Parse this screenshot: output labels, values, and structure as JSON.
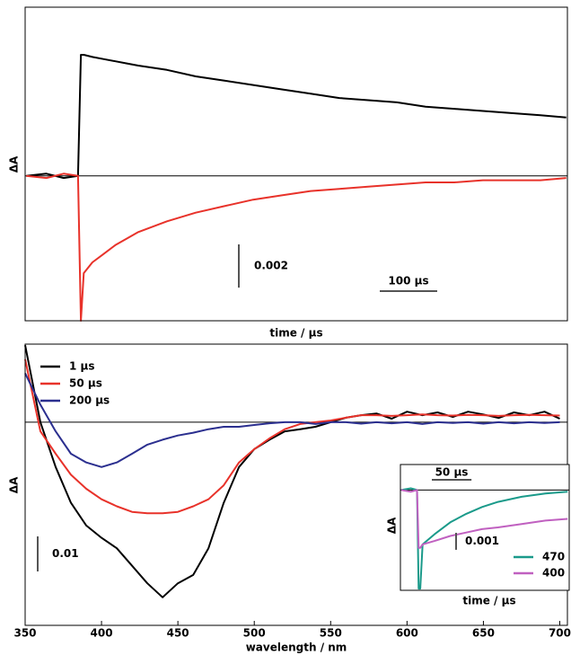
{
  "chart_data": [
    {
      "type": "line",
      "xlabel": "time / μs",
      "ylabel": "ΔA",
      "reference_line": 0,
      "xlim": [
        -97,
        847
      ],
      "ylim": [
        -0.0067,
        0.0078
      ],
      "x": [
        -95,
        -60,
        -30,
        -5,
        0,
        5,
        20,
        40,
        60,
        80,
        100,
        150,
        200,
        250,
        300,
        350,
        400,
        450,
        500,
        550,
        600,
        650,
        700,
        750,
        800,
        845
      ],
      "series": [
        {
          "color": "#000000",
          "values": [
            0,
            0.0001,
            -0.0001,
            0,
            0.0056,
            0.0056,
            0.0055,
            0.0054,
            0.0053,
            0.0052,
            0.0051,
            0.0049,
            0.0046,
            0.0044,
            0.0042,
            0.004,
            0.0038,
            0.0036,
            0.0035,
            0.0034,
            0.0032,
            0.0031,
            0.003,
            0.0029,
            0.0028,
            0.0027
          ]
        },
        {
          "color": "#e8322a",
          "values": [
            0,
            -0.0001,
            0.0001,
            0,
            -0.0067,
            -0.0045,
            -0.004,
            -0.0036,
            -0.0032,
            -0.0029,
            -0.0026,
            -0.0021,
            -0.0017,
            -0.0014,
            -0.0011,
            -0.0009,
            -0.0007,
            -0.0006,
            -0.0005,
            -0.0004,
            -0.0003,
            -0.0003,
            -0.0002,
            -0.0002,
            -0.0002,
            -0.0001
          ]
        }
      ],
      "scale_bars": [
        {
          "axis": "y",
          "value": 0.002
        },
        {
          "axis": "x",
          "value": 100,
          "label": "100 μs"
        }
      ]
    },
    {
      "type": "line",
      "xlabel": "wavelength / nm",
      "ylabel": "ΔA",
      "reference_line": 0,
      "legend": "upper left",
      "xlim": [
        350,
        705
      ],
      "ylim": [
        -0.058,
        0.0223
      ],
      "xticks": [
        350,
        400,
        450,
        500,
        550,
        600,
        650,
        700
      ],
      "x": [
        350,
        360,
        370,
        380,
        390,
        400,
        410,
        420,
        430,
        440,
        450,
        460,
        470,
        480,
        490,
        500,
        510,
        520,
        530,
        540,
        550,
        560,
        570,
        580,
        590,
        600,
        610,
        620,
        630,
        640,
        650,
        660,
        670,
        680,
        690,
        700
      ],
      "series": [
        {
          "name": "1 μs",
          "color": "#000000",
          "values": [
            0.022,
            0,
            -0.0128,
            -0.023,
            -0.0295,
            -0.033,
            -0.036,
            -0.041,
            -0.046,
            -0.05,
            -0.046,
            -0.0436,
            -0.036,
            -0.023,
            -0.0128,
            -0.0077,
            -0.005,
            -0.0026,
            -0.002,
            -0.0013,
            0,
            0.0013,
            0.002,
            0.0025,
            0.001,
            0.003,
            0.002,
            0.0028,
            0.0015,
            0.003,
            0.0022,
            0.0012,
            0.0028,
            0.002,
            0.003,
            0.001
          ]
        },
        {
          "name": "50 μs",
          "color": "#e8322a",
          "values": [
            0.018,
            -0.0026,
            -0.009,
            -0.015,
            -0.019,
            -0.022,
            -0.024,
            -0.0256,
            -0.026,
            -0.026,
            -0.0256,
            -0.024,
            -0.022,
            -0.018,
            -0.0115,
            -0.0077,
            -0.0046,
            -0.002,
            -0.0005,
            0,
            0.0005,
            0.0013,
            0.002,
            0.002,
            0.0018,
            0.002,
            0.0022,
            0.002,
            0.0019,
            0.0021,
            0.002,
            0.0018,
            0.002,
            0.0021,
            0.002,
            0.0019
          ]
        },
        {
          "name": "200 μs",
          "color": "#2b2f8f",
          "values": [
            0.014,
            0.005,
            -0.0026,
            -0.009,
            -0.0115,
            -0.0128,
            -0.0115,
            -0.009,
            -0.0064,
            -0.005,
            -0.0038,
            -0.003,
            -0.002,
            -0.0013,
            -0.0013,
            -0.0008,
            -0.0003,
            0,
            0,
            -0.0005,
            0,
            0,
            -0.0004,
            0,
            -0.0003,
            0,
            -0.0005,
            0,
            -0.0002,
            0,
            -0.0004,
            0,
            -0.0003,
            0,
            -0.0002,
            0
          ]
        }
      ],
      "scale_bars": [
        {
          "axis": "y",
          "value": 0.01
        }
      ]
    },
    {
      "type": "line",
      "xlabel": "time / μs",
      "ylabel": "ΔA",
      "reference_line": 0,
      "legend": "lower right",
      "xlim": [
        -23,
        190
      ],
      "ylim": [
        -0.0059,
        0.0015
      ],
      "x": [
        -22,
        -10,
        -2,
        0,
        2,
        5,
        20,
        40,
        60,
        80,
        100,
        130,
        160,
        188
      ],
      "series": [
        {
          "name": "470",
          "color": "#1a9a8a",
          "values": [
            0,
            0.0001,
            0,
            -0.0058,
            -0.0058,
            -0.0032,
            -0.0026,
            -0.0019,
            -0.0014,
            -0.001,
            -0.0007,
            -0.0004,
            -0.0002,
            -0.0001
          ]
        },
        {
          "name": "400",
          "color": "#c060c0",
          "values": [
            0,
            -0.0001,
            0,
            -0.0034,
            -0.0034,
            -0.0032,
            -0.003,
            -0.0027,
            -0.0025,
            -0.0023,
            -0.0022,
            -0.002,
            -0.0018,
            -0.0017
          ]
        }
      ],
      "scale_bars": [
        {
          "axis": "x",
          "value": 50,
          "label": "50 μs"
        },
        {
          "axis": "y",
          "value": 0.001
        }
      ]
    }
  ]
}
